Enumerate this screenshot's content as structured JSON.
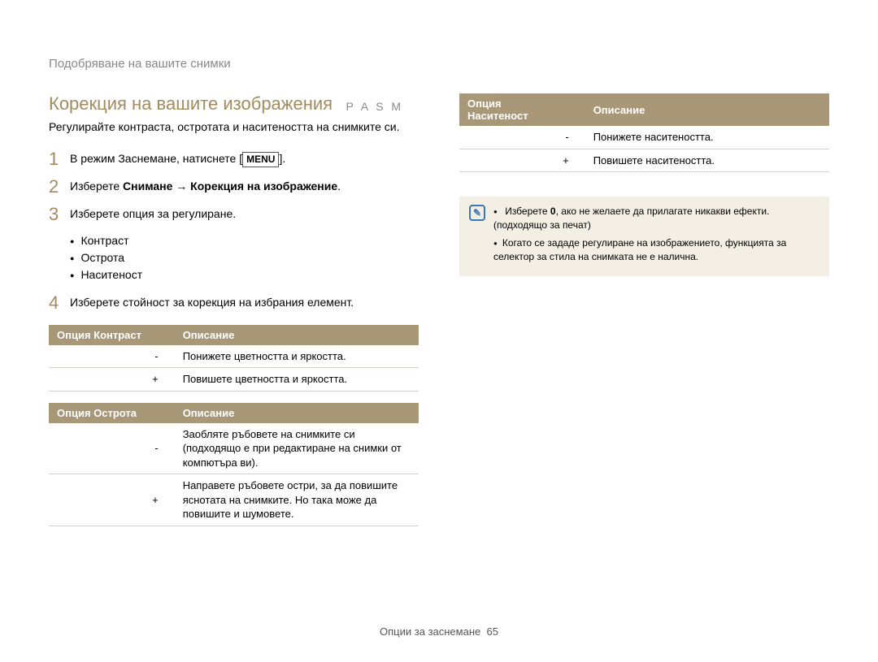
{
  "breadcrumb": "Подобряване на вашите снимки",
  "title": "Корекция на вашите изображения",
  "mode_letters": "P A S M",
  "intro": "Регулирайте контраста, остротата и наситеността на снимките си.",
  "steps": {
    "s1_pre": "В режим Заснемане, натиснете [",
    "s1_menu": "MENU",
    "s1_post": "].",
    "s2_pre": "Изберете ",
    "s2_b1": "Снимане",
    "s2_arrow": " → ",
    "s2_b2": "Корекция на изображение",
    "s2_post": ".",
    "s3": "Изберете опция за регулиране.",
    "s3_items": {
      "a": "Контраст",
      "b": "Острота",
      "c": "Наситеност"
    },
    "s4": "Изберете стойност за корекция на избрания елемент."
  },
  "table_contrast": {
    "h1": "Опция Контраст",
    "h2": "Описание",
    "r1a": "-",
    "r1b": "Понижете цветността и яркостта.",
    "r2a": "+",
    "r2b": "Повишете цветността и яркостта."
  },
  "table_sharp": {
    "h1": "Опция Острота",
    "h2": "Описание",
    "r1a": "-",
    "r1b": "Заобляте ръбовете на снимките си (подходящо е при редактиране на снимки от компютъра ви).",
    "r2a": "+",
    "r2b": "Направете ръбовете остри, за да повишите яснотата на снимките. Но така може да повишите и шумовете."
  },
  "table_sat": {
    "h1a": "Опция",
    "h1b": "Наситеност",
    "h2": "Описание",
    "r1a": "-",
    "r1b": "Понижете наситеността.",
    "r2a": "+",
    "r2b": "Повишете наситеността."
  },
  "note": {
    "i1_pre": "Изберете ",
    "i1_b": "0",
    "i1_post": ", ако не желаете да прилагате никакви ефекти. (подходящо за печат)",
    "i2": "Когато се зададе регулиране на изображението, функцията за селектор за стила на снимката не е налична."
  },
  "footer_label": "Опции за заснемане",
  "footer_page": "65",
  "colors": {
    "accent": "#a38b5f",
    "table_header_bg": "#a89878",
    "table_header_fg": "#ffffff",
    "note_bg": "#f3efe5",
    "note_icon": "#3a78b5"
  }
}
